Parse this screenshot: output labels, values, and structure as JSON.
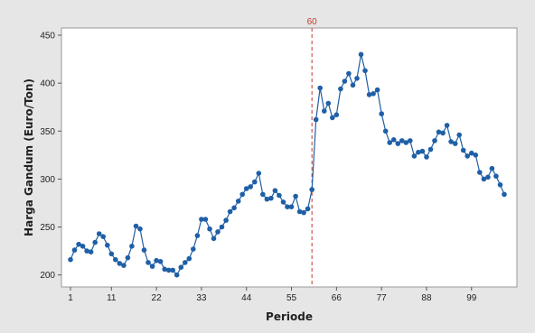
{
  "chart_data": {
    "type": "line",
    "title": "",
    "xlabel": "Periode",
    "ylabel": "Harga Gandum (Euro/Ton)",
    "xlim": [
      1,
      107
    ],
    "ylim": [
      195,
      450
    ],
    "xticks": [
      1,
      11,
      22,
      33,
      44,
      55,
      66,
      77,
      88,
      99
    ],
    "yticks": [
      200,
      250,
      300,
      350,
      400,
      450
    ],
    "grid": false,
    "legend": "none",
    "reference_line": {
      "x": 60,
      "label": "60",
      "color": "#c0392b",
      "style": "dashed"
    },
    "series": [
      {
        "color": "#1f5fa6",
        "marker": "circle",
        "x": [
          1,
          2,
          3,
          4,
          5,
          6,
          7,
          8,
          9,
          10,
          11,
          12,
          13,
          14,
          15,
          16,
          17,
          18,
          19,
          20,
          21,
          22,
          23,
          24,
          25,
          26,
          27,
          28,
          29,
          30,
          31,
          32,
          33,
          34,
          35,
          36,
          37,
          38,
          39,
          40,
          41,
          42,
          43,
          44,
          45,
          46,
          47,
          48,
          49,
          50,
          51,
          52,
          53,
          54,
          55,
          56,
          57,
          58,
          59,
          60,
          61,
          62,
          63,
          64,
          65,
          66,
          67,
          68,
          69,
          70,
          71,
          72,
          73,
          74,
          75,
          76,
          77,
          78,
          79,
          80,
          81,
          82,
          83,
          84,
          85,
          86,
          87,
          88,
          89,
          90,
          91,
          92,
          93,
          94,
          95,
          96,
          97,
          98,
          99,
          100,
          101,
          102,
          103,
          104,
          105,
          106,
          107
        ],
        "y": [
          216,
          226,
          232,
          230,
          225,
          224,
          234,
          243,
          240,
          231,
          222,
          216,
          212,
          210,
          218,
          230,
          251,
          248,
          226,
          213,
          209,
          215,
          214,
          206,
          205,
          205,
          200,
          208,
          213,
          217,
          227,
          241,
          258,
          258,
          248,
          238,
          245,
          250,
          257,
          266,
          270,
          277,
          284,
          290,
          292,
          297,
          306,
          284,
          279,
          280,
          288,
          283,
          276,
          271,
          271,
          282,
          266,
          265,
          269,
          289,
          362,
          395,
          371,
          379,
          364,
          367,
          394,
          402,
          410,
          398,
          405,
          430,
          413,
          388,
          389,
          393,
          368,
          350,
          338,
          341,
          337,
          340,
          338,
          340,
          324,
          328,
          329,
          323,
          331,
          340,
          349,
          348,
          356,
          339,
          337,
          346,
          330,
          324,
          327,
          325,
          307,
          300,
          302,
          311,
          303,
          294,
          284
        ]
      }
    ]
  }
}
